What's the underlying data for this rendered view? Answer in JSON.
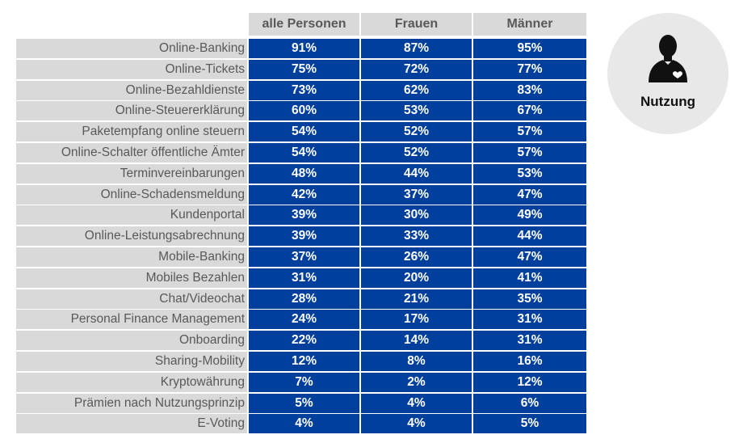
{
  "chart_data": {
    "type": "table",
    "columns": [
      "alle Personen",
      "Frauen",
      "Männer"
    ],
    "rows": [
      {
        "label": "Online-Banking",
        "values": [
          "91%",
          "87%",
          "95%"
        ]
      },
      {
        "label": "Online-Tickets",
        "values": [
          "75%",
          "72%",
          "77%"
        ]
      },
      {
        "label": "Online-Bezahldienste",
        "values": [
          "73%",
          "62%",
          "83%"
        ]
      },
      {
        "label": "Online-Steuererklärung",
        "values": [
          "60%",
          "53%",
          "67%"
        ]
      },
      {
        "label": "Paketempfang online steuern",
        "values": [
          "54%",
          "52%",
          "57%"
        ]
      },
      {
        "label": "Online-Schalter öffentliche Ämter",
        "values": [
          "54%",
          "52%",
          "57%"
        ]
      },
      {
        "label": "Terminvereinbarungen",
        "values": [
          "48%",
          "44%",
          "53%"
        ]
      },
      {
        "label": "Online-Schadensmeldung",
        "values": [
          "42%",
          "37%",
          "47%"
        ]
      },
      {
        "label": "Kundenportal",
        "values": [
          "39%",
          "30%",
          "49%"
        ]
      },
      {
        "label": "Online-Leistungsabrechnung",
        "values": [
          "39%",
          "33%",
          "44%"
        ]
      },
      {
        "label": "Mobile-Banking",
        "values": [
          "37%",
          "26%",
          "47%"
        ]
      },
      {
        "label": "Mobiles Bezahlen",
        "values": [
          "31%",
          "20%",
          "41%"
        ]
      },
      {
        "label": "Chat/Videochat",
        "values": [
          "28%",
          "21%",
          "35%"
        ]
      },
      {
        "label": "Personal Finance Management",
        "values": [
          "24%",
          "17%",
          "31%"
        ]
      },
      {
        "label": "Onboarding",
        "values": [
          "22%",
          "14%",
          "31%"
        ]
      },
      {
        "label": "Sharing-Mobility",
        "values": [
          "12%",
          "8%",
          "16%"
        ]
      },
      {
        "label": "Kryptowährung",
        "values": [
          "7%",
          "2%",
          "12%"
        ]
      },
      {
        "label": "Prämien nach Nutzungsprinzip",
        "values": [
          "5%",
          "4%",
          "6%"
        ]
      },
      {
        "label": "E-Voting",
        "values": [
          "4%",
          "4%",
          "5%"
        ]
      }
    ]
  },
  "badge": {
    "label": "Nutzung",
    "icon": "person-heart-icon"
  },
  "colors": {
    "value_cell": "#003f9b",
    "label_cell": "#d9d9d9",
    "badge_bg": "#e8e8e8"
  }
}
